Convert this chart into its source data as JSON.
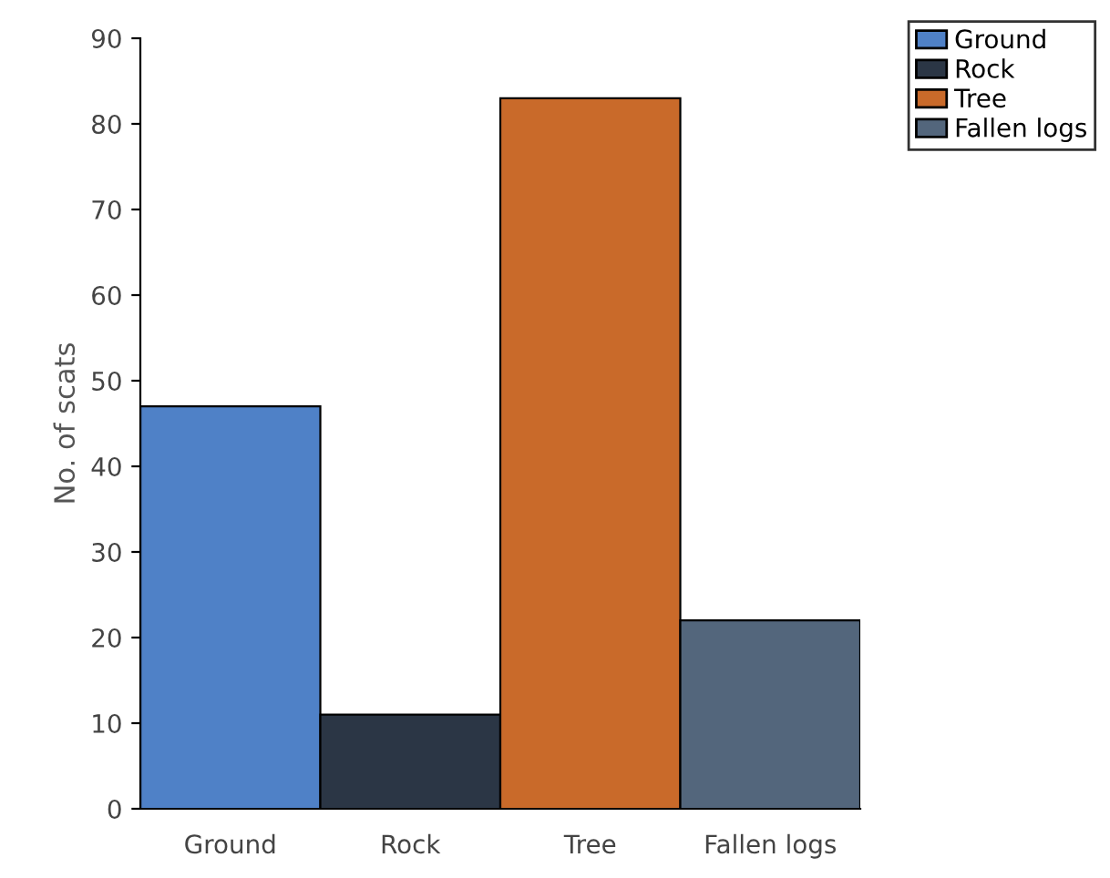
{
  "chart_data": {
    "type": "bar",
    "ylabel": "No. of scats",
    "categories": [
      "Ground",
      "Rock",
      "Tree",
      "Fallen logs"
    ],
    "series": [
      {
        "name": "Ground",
        "color": "#4f81c7",
        "values": [
          47,
          null,
          null,
          null
        ]
      },
      {
        "name": "Rock",
        "color": "#2b3645",
        "values": [
          null,
          11,
          null,
          null
        ]
      },
      {
        "name": "Tree",
        "color": "#c96a2a",
        "values": [
          null,
          null,
          83,
          null
        ]
      },
      {
        "name": "Fallen logs",
        "color": "#53667c",
        "values": [
          null,
          null,
          null,
          22
        ]
      }
    ],
    "ylim": [
      0,
      90
    ],
    "yticks": [
      0,
      10,
      20,
      30,
      40,
      50,
      60,
      70,
      80,
      90
    ],
    "grid": false,
    "legend": "top right"
  }
}
